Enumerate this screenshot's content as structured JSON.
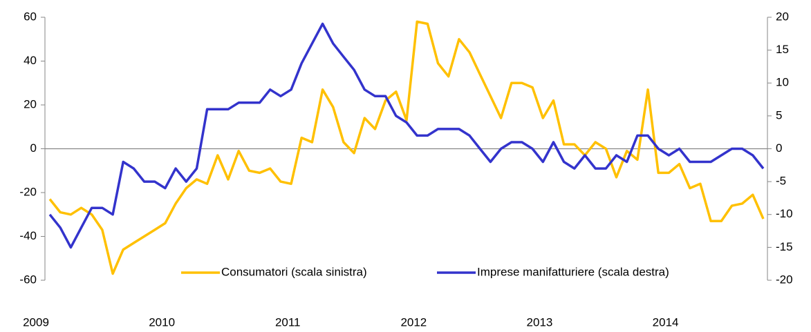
{
  "chart_data": {
    "type": "line",
    "categories": [
      "2009",
      null,
      null,
      null,
      null,
      null,
      null,
      null,
      null,
      null,
      null,
      null,
      "2010",
      null,
      null,
      null,
      null,
      null,
      null,
      null,
      null,
      null,
      null,
      null,
      "2011",
      null,
      null,
      null,
      null,
      null,
      null,
      null,
      null,
      null,
      null,
      null,
      "2012",
      null,
      null,
      null,
      null,
      null,
      null,
      null,
      null,
      null,
      null,
      null,
      "2013",
      null,
      null,
      null,
      null,
      null,
      null,
      null,
      null,
      null,
      null,
      null,
      "2014",
      null,
      null,
      null,
      null,
      null,
      null,
      null,
      null
    ],
    "series": [
      {
        "name": "Consumatori (scala sinistra)",
        "color": "#FFC000",
        "axis": "y",
        "values": [
          -23,
          -29,
          -30,
          -27,
          -30,
          -37,
          -57,
          -46,
          -43,
          -40,
          -37,
          -34,
          -25,
          -18,
          -14,
          -16,
          -3,
          -14,
          -1,
          -10,
          -11,
          -9,
          -15,
          -16,
          5,
          3,
          27,
          19,
          3,
          -2,
          14,
          9,
          22,
          26,
          13,
          58,
          57,
          39,
          33,
          50,
          44,
          34,
          24,
          14,
          30,
          30,
          28,
          14,
          22,
          2,
          2,
          -3,
          3,
          0,
          -13,
          -1,
          -5,
          27,
          -11,
          -11,
          -7,
          -18,
          -16,
          -33,
          -33,
          -26,
          -25,
          -21,
          -32
        ]
      },
      {
        "name": "Imprese manifatturiere (scala destra)",
        "color": "#3333CC",
        "axis": "y2",
        "values": [
          -10,
          -12,
          -15,
          -12,
          -9,
          -9,
          -10,
          -2,
          -3,
          -5,
          -5,
          -6,
          -3,
          -5,
          -3,
          6,
          6,
          6,
          7,
          7,
          7,
          9,
          8,
          9,
          13,
          16,
          19,
          16,
          14,
          12,
          9,
          8,
          8,
          5,
          4,
          2,
          2,
          3,
          3,
          3,
          2,
          0,
          -2,
          0,
          1,
          1,
          0,
          -2,
          1,
          -2,
          -3,
          -1,
          -3,
          -3,
          -1,
          -2,
          2,
          2,
          0,
          -1,
          0,
          -2,
          -2,
          -2,
          -1,
          0,
          0,
          -1,
          -3
        ]
      }
    ],
    "ylim": [
      -60,
      60
    ],
    "yticks": [
      -60,
      -40,
      -20,
      0,
      20,
      40,
      60
    ],
    "y2lim": [
      -20,
      20
    ],
    "y2ticks": [
      -20,
      -15,
      -10,
      -5,
      0,
      5,
      10,
      15,
      20
    ],
    "legend": "bottom"
  }
}
